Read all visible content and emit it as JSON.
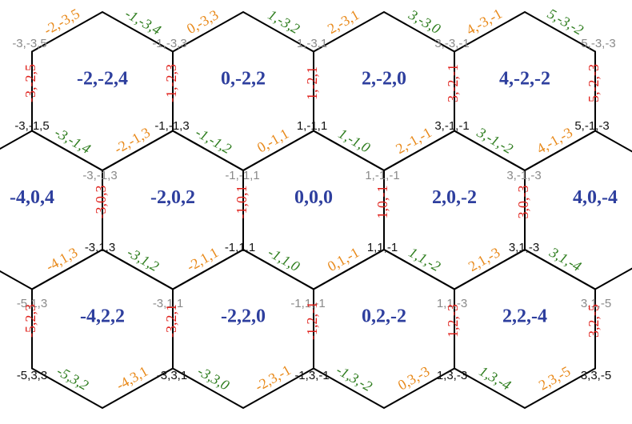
{
  "hexes": [
    {
      "label": "-2,-2,4"
    },
    {
      "label": "0,-2,2"
    },
    {
      "label": "2,-2,0"
    },
    {
      "label": "4,-2,-2"
    },
    {
      "label": "-4,0,4"
    },
    {
      "label": "-2,0,2"
    },
    {
      "label": "0,0,0"
    },
    {
      "label": "2,0,-2"
    },
    {
      "label": "4,0,-4"
    },
    {
      "label": "-4,2,2"
    },
    {
      "label": "-2,2,0"
    },
    {
      "label": "0,2,-2"
    },
    {
      "label": "2,2,-4"
    }
  ],
  "vertex_labels": [
    "-3,-3,5",
    "-1,-3,3",
    "1,-3,1",
    "3,-3,-1",
    "5,-3,-3",
    "-3,-1,5",
    "-1,-1,3",
    "1,-1,1",
    "3,-1,-1",
    "5,-1,-3",
    "-3,-1,3",
    "-1,-1,1",
    "1,-1,-1",
    "3,-1,-3",
    "-3,1,3",
    "-1,1,1",
    "1,1,-1",
    "3,1,-3",
    "-5,1,3",
    "-3,1,1",
    "-1,1,-1",
    "1,1,-3",
    "3,1,-5",
    "-5,3,3",
    "-3,3,1",
    "-1,3,-1",
    "1,3,-3",
    "3,3,-5"
  ],
  "vertical_edge_labels": [
    "-3,-2,5",
    "-1,-2,3",
    "1,-2,1",
    "3,-2,-1",
    "5,-2,-3",
    "-3,0,3",
    "-1,0,1",
    "1,0,-1",
    "3,0,-3",
    "-5,2,3",
    "-3,2,1",
    "-1,2,-1",
    "1,2,-3",
    "3,2,-5"
  ],
  "rising_edge_labels": [
    "-2,-3,5",
    "0,-3,3",
    "2,-3,1",
    "4,-3,-1",
    "-2,-1,3",
    "0,-1,1",
    "2,-1,-1",
    "4,-1,-3",
    "-4,1,3",
    "-2,1,1",
    "0,1,-1",
    "2,1,-3",
    "-4,3,1",
    "-2,3,-1",
    "0,3,-3",
    "2,3,-5"
  ],
  "falling_edge_labels": [
    "-1,-3,4",
    "1,-3,2",
    "3,-3,0",
    "5,-3,-2",
    "-3,-1,4",
    "-1,-1,2",
    "1,-1,0",
    "3,-1,-2",
    "-3,1,2",
    "-1,1,0",
    "1,1,-2",
    "3,1,-4",
    "-5,3,2",
    "-3,3,0",
    "-1,3,-2",
    "1,3,-4"
  ]
}
